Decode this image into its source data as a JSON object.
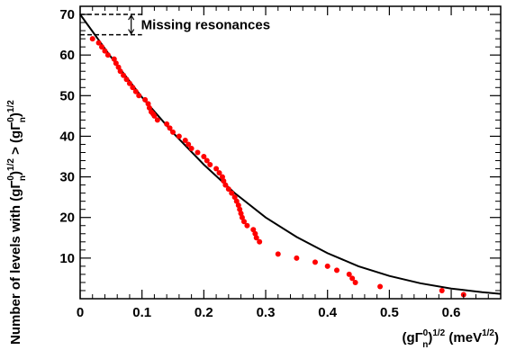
{
  "chart_data": {
    "type": "scatter",
    "xlim": [
      0,
      0.68
    ],
    "ylim": [
      0,
      72
    ],
    "x_ticks": [
      {
        "value": 0,
        "label": "0"
      },
      {
        "value": 0.1,
        "label": "0.1"
      },
      {
        "value": 0.2,
        "label": "0.2"
      },
      {
        "value": 0.3,
        "label": "0.3"
      },
      {
        "value": 0.4,
        "label": "0.4"
      },
      {
        "value": 0.5,
        "label": "0.5"
      },
      {
        "value": 0.6,
        "label": "0.6"
      }
    ],
    "y_ticks": [
      {
        "value": 10,
        "label": "10"
      },
      {
        "value": 20,
        "label": "20"
      },
      {
        "value": 30,
        "label": "30"
      },
      {
        "value": 40,
        "label": "40"
      },
      {
        "value": 50,
        "label": "50"
      },
      {
        "value": 60,
        "label": "60"
      },
      {
        "value": 70,
        "label": "70"
      }
    ],
    "xlabel": {
      "base": "(gΓ",
      "sup1": "0",
      "sub1": "n",
      "close": ")",
      "sup2": "1/2",
      "unit": " (meV",
      "unit_sup": "1/2",
      "unit_close": ")"
    },
    "ylabel": {
      "part1": "Number of levels with (gΓ",
      "sup1": "0",
      "sub1": "n",
      "close1": ")",
      "sup2": "1/2",
      "mid": " > (gΓ",
      "sup3": "0",
      "sub3": "n",
      "close3": ")",
      "sup4": "1/2"
    },
    "annotation": {
      "text": "Missing resonances",
      "y_top": 70,
      "y_bottom": 65,
      "x_start": 0,
      "x_end": 0.1
    },
    "points": {
      "color": "#ff0000",
      "x": [
        0.02,
        0.03,
        0.035,
        0.04,
        0.045,
        0.055,
        0.058,
        0.062,
        0.065,
        0.07,
        0.075,
        0.08,
        0.085,
        0.09,
        0.095,
        0.105,
        0.11,
        0.112,
        0.115,
        0.118,
        0.12,
        0.125,
        0.14,
        0.145,
        0.15,
        0.16,
        0.17,
        0.175,
        0.18,
        0.19,
        0.2,
        0.205,
        0.21,
        0.22,
        0.225,
        0.23,
        0.232,
        0.235,
        0.24,
        0.245,
        0.25,
        0.253,
        0.256,
        0.258,
        0.26,
        0.262,
        0.265,
        0.27,
        0.28,
        0.283,
        0.285,
        0.29,
        0.32,
        0.35,
        0.38,
        0.4,
        0.415,
        0.435,
        0.44,
        0.445,
        0.485,
        0.585,
        0.62
      ],
      "y": [
        64,
        63,
        62,
        61,
        60,
        59,
        58,
        57,
        56,
        55,
        54,
        53,
        52,
        51,
        50,
        49,
        48,
        47,
        46,
        45.5,
        45,
        44,
        43,
        42,
        41,
        40,
        39,
        38,
        37,
        36,
        35,
        34,
        33,
        32,
        31,
        30,
        29,
        28,
        27,
        26,
        25,
        24,
        23,
        22,
        21,
        20,
        19,
        18,
        17,
        16,
        15,
        14,
        11,
        10,
        9,
        8,
        7,
        6,
        5,
        4,
        3,
        2,
        1
      ]
    },
    "curve": {
      "color": "#000000",
      "x": [
        0,
        0.05,
        0.1,
        0.15,
        0.2,
        0.25,
        0.3,
        0.35,
        0.4,
        0.45,
        0.5,
        0.55,
        0.6,
        0.65,
        0.68
      ],
      "y": [
        70,
        59.5,
        49.6,
        40.9,
        33.0,
        26.0,
        20.0,
        15.2,
        11.2,
        8.0,
        5.6,
        3.8,
        2.5,
        1.6,
        1.2
      ]
    }
  }
}
